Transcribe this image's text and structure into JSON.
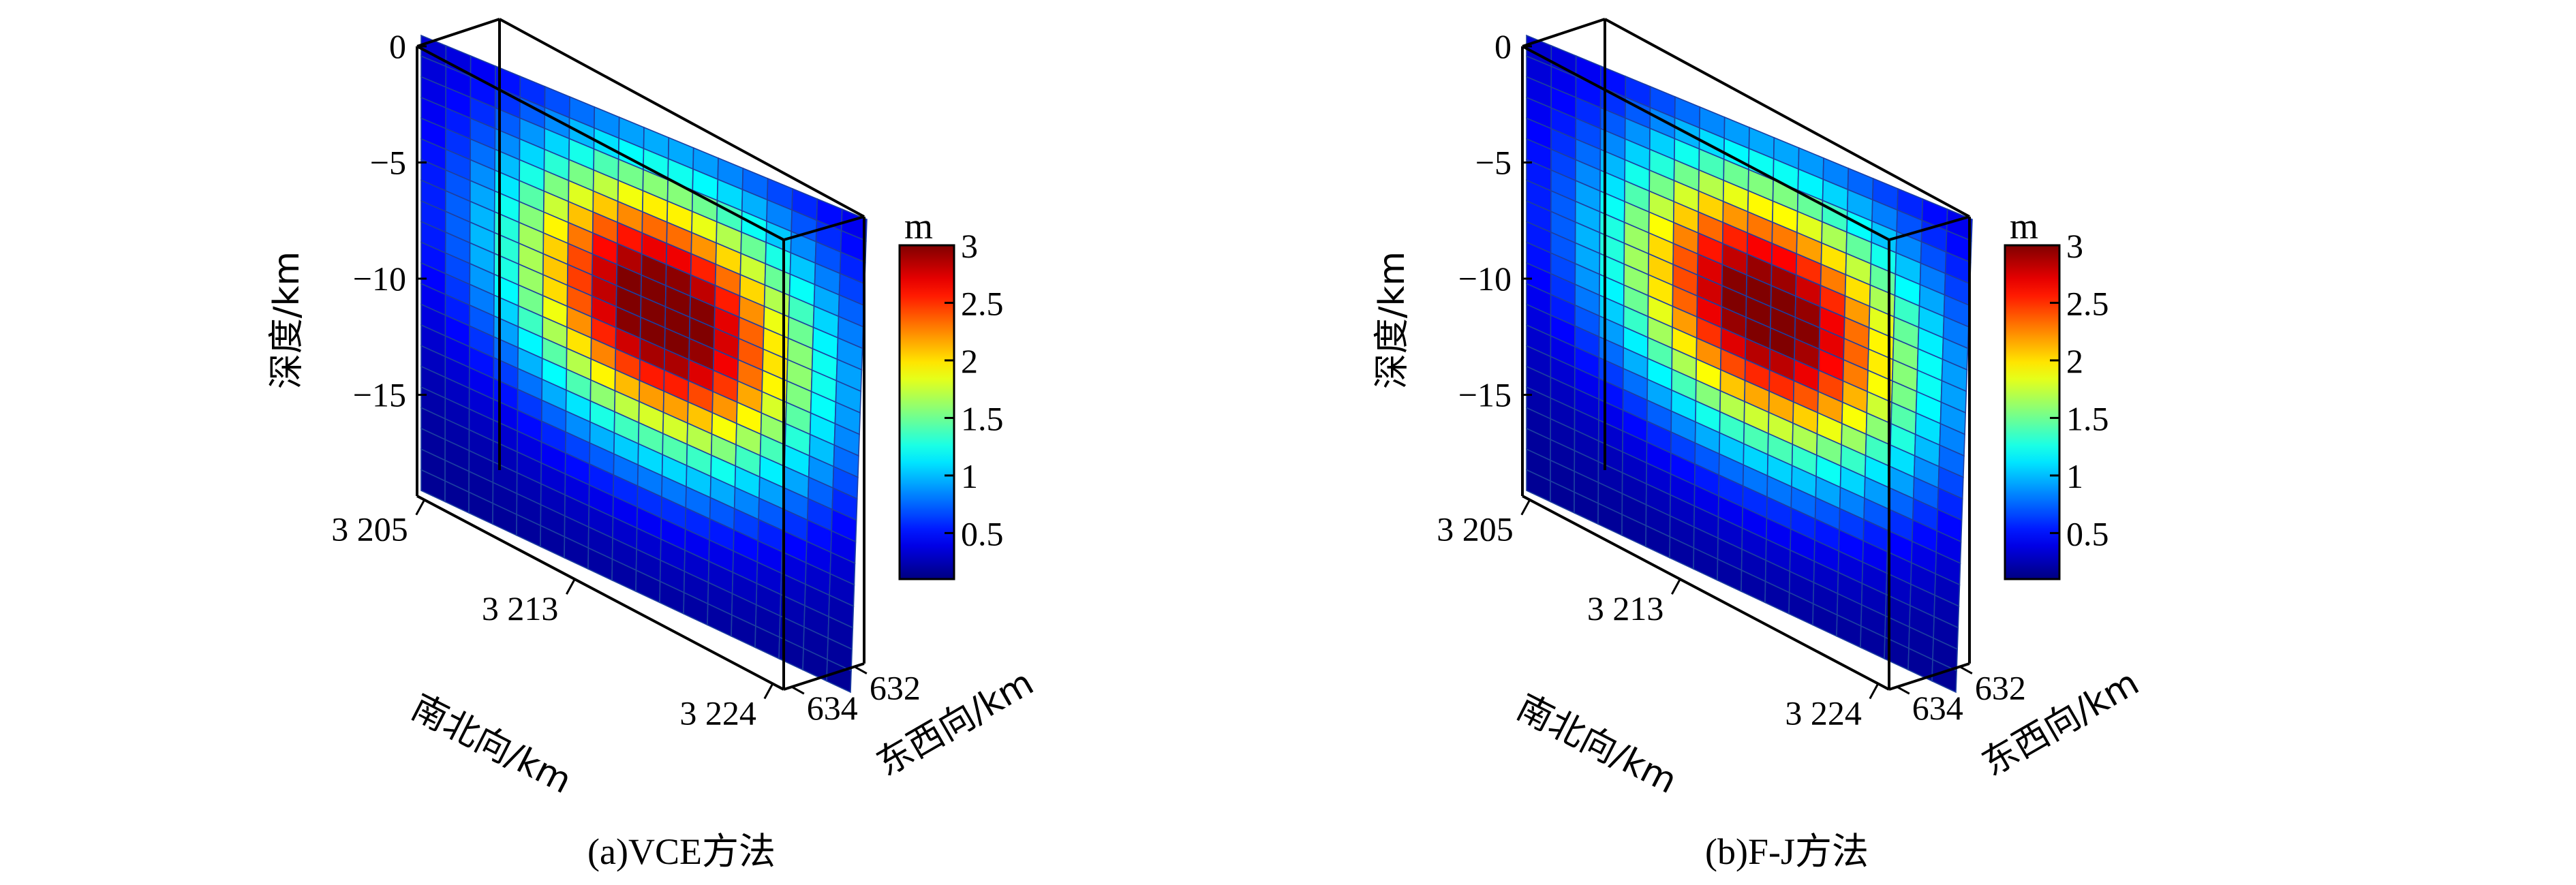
{
  "chart_data": [
    {
      "type": "heatmap",
      "subtype": "3d-fault-slip-distribution",
      "caption": "(a)VCE方法",
      "zlabel": "深度/km",
      "xlabel": "南北向/km",
      "ylabel": "东西向/km",
      "z_ticks": [
        "0",
        "−5",
        "−10",
        "−15"
      ],
      "z_tick_values": [
        0,
        -5,
        -10,
        -15
      ],
      "ns_ticks": [
        "3 205",
        "3 213",
        "3 224"
      ],
      "ns_tick_values": [
        3205,
        3213,
        3224
      ],
      "ew_ticks": [
        "632",
        "634"
      ],
      "ew_tick_values": [
        632,
        634
      ],
      "colorbar": {
        "unit": "m",
        "ticks": [
          "3",
          "2.5",
          "2",
          "1.5",
          "1",
          "0.5"
        ],
        "tick_values": [
          3,
          2.5,
          2,
          1.5,
          1,
          0.5
        ],
        "range": [
          0.1,
          3.0
        ],
        "colormap": "jet"
      },
      "grid": {
        "rows": 22,
        "cols": 18
      },
      "slip_peak_m": 3.0,
      "slip_peak_location": {
        "depth_km": -8.5,
        "along_strike_fraction": 0.55
      }
    },
    {
      "type": "heatmap",
      "subtype": "3d-fault-slip-distribution",
      "caption": "(b)F-J方法",
      "zlabel": "深度/km",
      "xlabel": "南北向/km",
      "ylabel": "东西向/km",
      "z_ticks": [
        "0",
        "−5",
        "−10",
        "−15"
      ],
      "z_tick_values": [
        0,
        -5,
        -10,
        -15
      ],
      "ns_ticks": [
        "3 205",
        "3 213",
        "3 224"
      ],
      "ns_tick_values": [
        3205,
        3213,
        3224
      ],
      "ew_ticks": [
        "632",
        "634"
      ],
      "ew_tick_values": [
        632,
        634
      ],
      "colorbar": {
        "unit": "m",
        "ticks": [
          "3",
          "2.5",
          "2",
          "1.5",
          "1",
          "0.5"
        ],
        "tick_values": [
          3,
          2.5,
          2,
          1.5,
          1,
          0.5
        ],
        "range": [
          0.1,
          3.0
        ],
        "colormap": "jet"
      },
      "grid": {
        "rows": 22,
        "cols": 18
      },
      "slip_peak_m": 2.95,
      "slip_peak_location": {
        "depth_km": -8.5,
        "along_strike_fraction": 0.55
      }
    }
  ]
}
